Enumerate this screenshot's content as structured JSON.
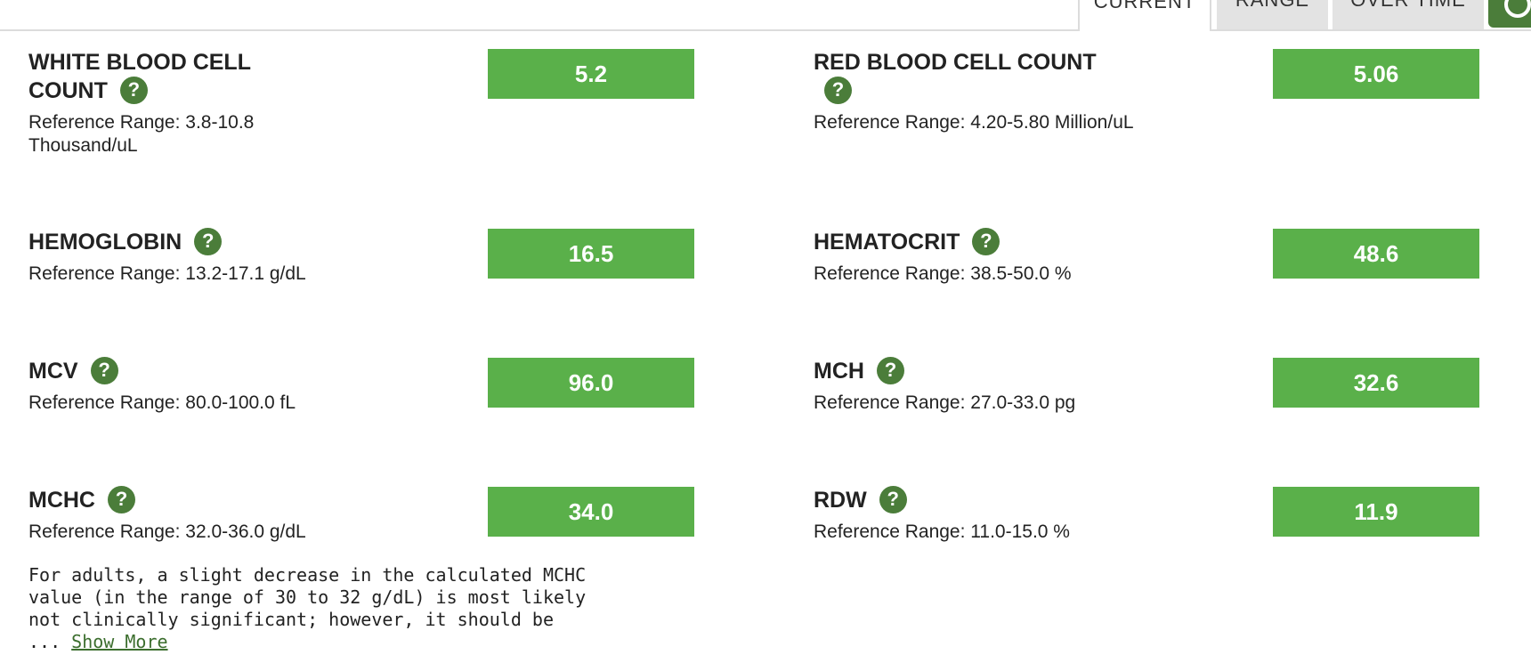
{
  "tabs": {
    "current": "CURRENT",
    "range": "RANGE",
    "over_time": "OVER TIME"
  },
  "help_glyph": "?",
  "results": [
    {
      "name": "WHITE BLOOD CELL COUNT",
      "name_line1": "WHITE BLOOD CELL",
      "name_line2": "COUNT",
      "range_line1": "Reference Range: 3.8-10.8",
      "range_line2": "Thousand/uL",
      "value": "5.2"
    },
    {
      "name": "RED BLOOD CELL COUNT",
      "range": "Reference Range: 4.20-5.80 Million/uL",
      "value": "5.06"
    },
    {
      "name": "HEMOGLOBIN",
      "range": "Reference Range: 13.2-17.1 g/dL",
      "value": "16.5"
    },
    {
      "name": "HEMATOCRIT",
      "range": "Reference Range: 38.5-50.0 %",
      "value": "48.6"
    },
    {
      "name": "MCV",
      "range": "Reference Range: 80.0-100.0 fL",
      "value": "96.0"
    },
    {
      "name": "MCH",
      "range": "Reference Range: 27.0-33.0 pg",
      "value": "32.6"
    },
    {
      "name": "MCHC",
      "range": "Reference Range: 32.0-36.0 g/dL",
      "value": "34.0"
    },
    {
      "name": "RDW",
      "range": "Reference Range: 11.0-15.0 %",
      "value": "11.9"
    }
  ],
  "note": {
    "line1": "For adults, a slight decrease in the calculated MCHC",
    "line2": "value (in the range of 30 to 32 g/dL) is most likely",
    "line3": "not clinically significant; however, it should be",
    "ellipsis": "... ",
    "show_more": "Show More"
  },
  "colors": {
    "value_normal": "#5ab04a",
    "help_icon": "#4b7d3a",
    "tab_inactive": "#e3e3e3"
  }
}
